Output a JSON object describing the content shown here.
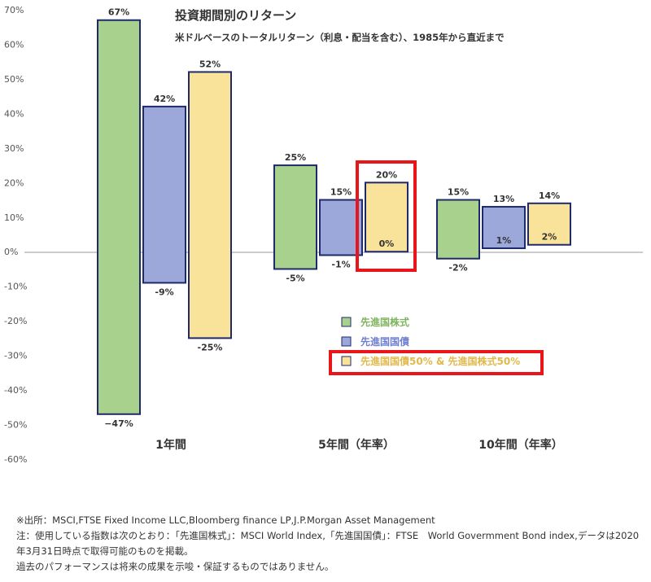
{
  "chart_data": {
    "type": "bar",
    "title": "投資期間別のリターン",
    "subtitle": "米ドルベースのトータルリターン（利息・配当を含む）、1985年から直近まで",
    "categories": [
      "1年間",
      "5年間（年率）",
      "10年間（年率）"
    ],
    "y_ticks": [
      "70%",
      "60%",
      "50%",
      "40%",
      "30%",
      "20%",
      "10%",
      "0%",
      "-10%",
      "-20%",
      "-30%",
      "-40%",
      "-50%",
      "-60%"
    ],
    "ylim": [
      -60,
      70
    ],
    "grid": false,
    "legend_position": "bottom-center",
    "series": [
      {
        "name": "先進国株式",
        "color": "#a9d18e",
        "high": [
          67,
          25,
          15
        ],
        "low": [
          -47,
          -5,
          -2
        ],
        "high_labels": [
          "67%",
          "25%",
          "15%"
        ],
        "low_labels": [
          "−47%",
          "-5%",
          "-2%"
        ]
      },
      {
        "name": "先進国国債",
        "color": "#9da8da",
        "high": [
          42,
          15,
          13
        ],
        "low": [
          -9,
          -1,
          1
        ],
        "high_labels": [
          "42%",
          "15%",
          "13%"
        ],
        "low_labels": [
          "-9%",
          "-1%",
          "1%"
        ]
      },
      {
        "name": "先進国国債50% & 先進国株式50%",
        "color": "#f9e29a",
        "high": [
          52,
          20,
          14
        ],
        "low": [
          -25,
          0,
          2
        ],
        "high_labels": [
          "52%",
          "20%",
          "14%"
        ],
        "low_labels": [
          "-25%",
          "0%",
          "2%"
        ]
      }
    ],
    "highlights": [
      "5年間（年率） 先進国国債50% & 先進国株式50%",
      "legend: 先進国国債50% & 先進国株式50%"
    ]
  },
  "notes": [
    "※出所：MSCI,FTSE Fixed Income LLC,Bloomberg finance LP,J.P.Morgan Asset Management",
    "注：使用している指数は次のとおり：「先進国株式」：MSCI World Index,「先進国国債」：FTSE　World Govermment Bond index,データは2020年3月31日時点で取得可能のものを掲載。",
    "過去のパフォーマンスは将来の成果を示唆・保証するものではありません。"
  ],
  "colors": {
    "border": "#1f2a6b",
    "highlight": "#e8161b",
    "legend_text_green": "#7fb35f",
    "legend_text_blue": "#6f7fd0",
    "legend_text_yellow": "#e0b94a"
  }
}
